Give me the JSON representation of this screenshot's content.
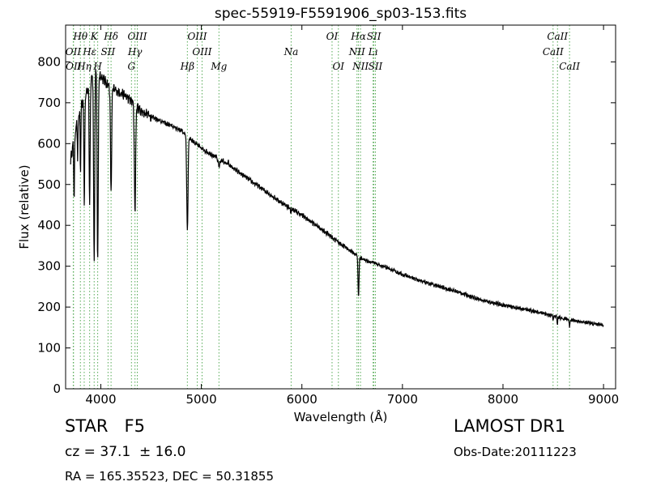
{
  "chart_data": {
    "type": "line",
    "title": "spec-55919-F5591906_sp03-153.fits",
    "xlabel": "Wavelength (Å)",
    "ylabel": "Flux (relative)",
    "xlim": [
      3650,
      9120
    ],
    "ylim": [
      0,
      890
    ],
    "xticks": [
      4000,
      5000,
      6000,
      7000,
      8000,
      9000
    ],
    "yticks": [
      0,
      100,
      200,
      300,
      400,
      500,
      600,
      700,
      800
    ],
    "grid": false,
    "line_color": "#000000",
    "marker_color": "#55aa55",
    "series": [
      {
        "continuum": [
          [
            3700,
            560
          ],
          [
            3750,
            640
          ],
          [
            3800,
            690
          ],
          [
            3850,
            720
          ],
          [
            3900,
            760
          ],
          [
            3950,
            790
          ],
          [
            4000,
            765
          ],
          [
            4100,
            735
          ],
          [
            4200,
            725
          ],
          [
            4300,
            705
          ],
          [
            4400,
            680
          ],
          [
            4600,
            655
          ],
          [
            4800,
            632
          ],
          [
            5000,
            588
          ],
          [
            5200,
            560
          ],
          [
            5400,
            525
          ],
          [
            5600,
            490
          ],
          [
            5800,
            455
          ],
          [
            6000,
            425
          ],
          [
            6200,
            390
          ],
          [
            6400,
            352
          ],
          [
            6600,
            318
          ],
          [
            6800,
            300
          ],
          [
            7000,
            280
          ],
          [
            7200,
            262
          ],
          [
            7400,
            248
          ],
          [
            7600,
            233
          ],
          [
            7800,
            216
          ],
          [
            8000,
            205
          ],
          [
            8200,
            195
          ],
          [
            8400,
            185
          ],
          [
            8600,
            172
          ],
          [
            8800,
            163
          ],
          [
            9000,
            156
          ]
        ],
        "absorption": [
          [
            3735,
            470,
            6
          ],
          [
            3770,
            560,
            5
          ],
          [
            3798,
            520,
            5
          ],
          [
            3836,
            450,
            6
          ],
          [
            3889,
            450,
            7
          ],
          [
            3934,
            310,
            8
          ],
          [
            3969,
            315,
            8
          ],
          [
            4102,
            480,
            8
          ],
          [
            4340,
            435,
            9
          ],
          [
            4861,
            385,
            9
          ],
          [
            5175,
            545,
            14
          ],
          [
            5270,
            555,
            8
          ],
          [
            5890,
            430,
            6
          ],
          [
            6563,
            225,
            7
          ],
          [
            8498,
            165,
            4
          ],
          [
            8542,
            155,
            4
          ],
          [
            8662,
            150,
            4
          ]
        ]
      }
    ],
    "lines": [
      {
        "label": "Hθ",
        "x": 3797,
        "row": 0
      },
      {
        "label": "K",
        "x": 3934,
        "row": 0
      },
      {
        "label": "Hδ",
        "x": 4102,
        "row": 0
      },
      {
        "label": "OIII",
        "x": 4363,
        "row": 0
      },
      {
        "label": "OIII",
        "x": 4959,
        "row": 0
      },
      {
        "label": "OI",
        "x": 6300,
        "row": 0
      },
      {
        "label": "Hα",
        "x": 6563,
        "row": 0
      },
      {
        "label": "SII",
        "x": 6716,
        "row": 0
      },
      {
        "label": "CaII",
        "x": 8542,
        "row": 0
      },
      {
        "label": "OII",
        "x": 3726,
        "row": 1
      },
      {
        "label": "Hε",
        "x": 3889,
        "row": 1
      },
      {
        "label": "SII",
        "x": 4072,
        "row": 1
      },
      {
        "label": "Hγ",
        "x": 4340,
        "row": 1
      },
      {
        "label": "OIII",
        "x": 5007,
        "row": 1
      },
      {
        "label": "Na",
        "x": 5893,
        "row": 1
      },
      {
        "label": "NII",
        "x": 6548,
        "row": 1
      },
      {
        "label": "Lı",
        "x": 6708,
        "row": 1
      },
      {
        "label": "CaII",
        "x": 8498,
        "row": 1
      },
      {
        "label": "OII",
        "x": 3729,
        "row": 2
      },
      {
        "label": "Hη",
        "x": 3835,
        "row": 2
      },
      {
        "label": "H",
        "x": 3969,
        "row": 2
      },
      {
        "label": "G",
        "x": 4305,
        "row": 2
      },
      {
        "label": "Hβ",
        "x": 4861,
        "row": 2
      },
      {
        "label": "Mg",
        "x": 5175,
        "row": 2
      },
      {
        "label": "OI",
        "x": 6363,
        "row": 2
      },
      {
        "label": "NII",
        "x": 6583,
        "row": 2
      },
      {
        "label": "SII",
        "x": 6731,
        "row": 2
      },
      {
        "label": "CaII",
        "x": 8662,
        "row": 2
      }
    ]
  },
  "info": {
    "class_label": "STAR   F5",
    "cz_text": "cz = 37.1  ± 16.0",
    "coords_text": "RA = 165.35523, DEC = 50.31855",
    "survey": "LAMOST DR1",
    "obs_date": "Obs-Date:20111223"
  }
}
